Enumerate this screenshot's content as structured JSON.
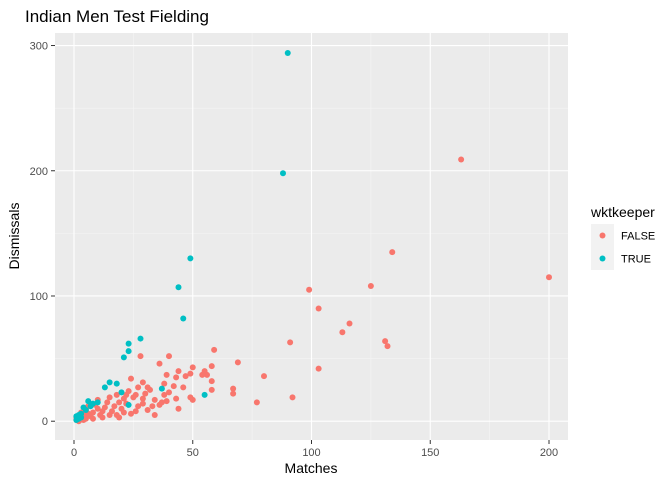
{
  "colors": {
    "panel_bg": "#EBEBEB",
    "grid_major": "#FFFFFF",
    "grid_minor": "#F5F5F5",
    "false": "#F8766D",
    "true": "#00BFC4",
    "tick_text": "#4D4D4D",
    "text": "#000000"
  },
  "chart_data": {
    "type": "scatter",
    "title": "Indian Men Test Fielding",
    "xlabel": "Matches",
    "ylabel": "Dismissals",
    "xlim": [
      -8,
      208
    ],
    "ylim": [
      -15,
      310
    ],
    "x_ticks": [
      0,
      50,
      100,
      150,
      200
    ],
    "y_ticks": [
      0,
      100,
      200,
      300
    ],
    "grid": true,
    "legend": {
      "title": "wktkeeper",
      "position": "right"
    },
    "series": [
      {
        "name": "FALSE",
        "color": "#F8766D",
        "points": [
          [
            163,
            209
          ],
          [
            200,
            115
          ],
          [
            134,
            135
          ],
          [
            125,
            108
          ],
          [
            99,
            105
          ],
          [
            103,
            90
          ],
          [
            116,
            78
          ],
          [
            113,
            71
          ],
          [
            131,
            64
          ],
          [
            132,
            60
          ],
          [
            91,
            63
          ],
          [
            103,
            42
          ],
          [
            80,
            36
          ],
          [
            92,
            19
          ],
          [
            77,
            15
          ],
          [
            69,
            47
          ],
          [
            67,
            26
          ],
          [
            67,
            22
          ],
          [
            59,
            57
          ],
          [
            58,
            44
          ],
          [
            56,
            37
          ],
          [
            55,
            40
          ],
          [
            58,
            32
          ],
          [
            58,
            25
          ],
          [
            54,
            37
          ],
          [
            50,
            43
          ],
          [
            49,
            38
          ],
          [
            49,
            19
          ],
          [
            50,
            17
          ],
          [
            47,
            36
          ],
          [
            44,
            40
          ],
          [
            46,
            27
          ],
          [
            43,
            35
          ],
          [
            42,
            28
          ],
          [
            40,
            52
          ],
          [
            39,
            37
          ],
          [
            38,
            30
          ],
          [
            40,
            23
          ],
          [
            43,
            18
          ],
          [
            39,
            16
          ],
          [
            36,
            46
          ],
          [
            38,
            21
          ],
          [
            37,
            15
          ],
          [
            36,
            13
          ],
          [
            34,
            17
          ],
          [
            33,
            12
          ],
          [
            28,
            52
          ],
          [
            29,
            31
          ],
          [
            31,
            27
          ],
          [
            32,
            25
          ],
          [
            30,
            22
          ],
          [
            29,
            18
          ],
          [
            29,
            14
          ],
          [
            27,
            12
          ],
          [
            26,
            8
          ],
          [
            27,
            27
          ],
          [
            26,
            21
          ],
          [
            25,
            19
          ],
          [
            24,
            34
          ],
          [
            23,
            24
          ],
          [
            22,
            21
          ],
          [
            21,
            18
          ],
          [
            22,
            14
          ],
          [
            20,
            10
          ],
          [
            21,
            7
          ],
          [
            18,
            21
          ],
          [
            19,
            15
          ],
          [
            17,
            12
          ],
          [
            16,
            8
          ],
          [
            18,
            5
          ],
          [
            15,
            19
          ],
          [
            14,
            15
          ],
          [
            13,
            11
          ],
          [
            12,
            8
          ],
          [
            11,
            5
          ],
          [
            10,
            17
          ],
          [
            9,
            13
          ],
          [
            10,
            10
          ],
          [
            8,
            7
          ],
          [
            7,
            4
          ],
          [
            6,
            12
          ],
          [
            5,
            9
          ],
          [
            6,
            6
          ],
          [
            4,
            5
          ],
          [
            3,
            3
          ],
          [
            4,
            1
          ],
          [
            2,
            2
          ],
          [
            1,
            1
          ],
          [
            2,
            0
          ],
          [
            1,
            3
          ],
          [
            3,
            7
          ],
          [
            5,
            2
          ],
          [
            8,
            2
          ],
          [
            12,
            3
          ],
          [
            15,
            5
          ],
          [
            19,
            3
          ],
          [
            24,
            6
          ],
          [
            31,
            9
          ],
          [
            34,
            5
          ],
          [
            44,
            10
          ]
        ]
      },
      {
        "name": "TRUE",
        "color": "#00BFC4",
        "points": [
          [
            90,
            294
          ],
          [
            88,
            198
          ],
          [
            49,
            130
          ],
          [
            44,
            107
          ],
          [
            46,
            82
          ],
          [
            28,
            66
          ],
          [
            23,
            62
          ],
          [
            23,
            56
          ],
          [
            21,
            51
          ],
          [
            15,
            31
          ],
          [
            18,
            30
          ],
          [
            13,
            27
          ],
          [
            37,
            26
          ],
          [
            20,
            23
          ],
          [
            55,
            21
          ],
          [
            23,
            13
          ],
          [
            6,
            16
          ],
          [
            8,
            14
          ],
          [
            10,
            15
          ],
          [
            4,
            11
          ],
          [
            3,
            6
          ],
          [
            2,
            5
          ],
          [
            1,
            4
          ],
          [
            5,
            9
          ],
          [
            7,
            12
          ],
          [
            2,
            2
          ],
          [
            1,
            1
          ],
          [
            3,
            3
          ]
        ]
      }
    ]
  }
}
